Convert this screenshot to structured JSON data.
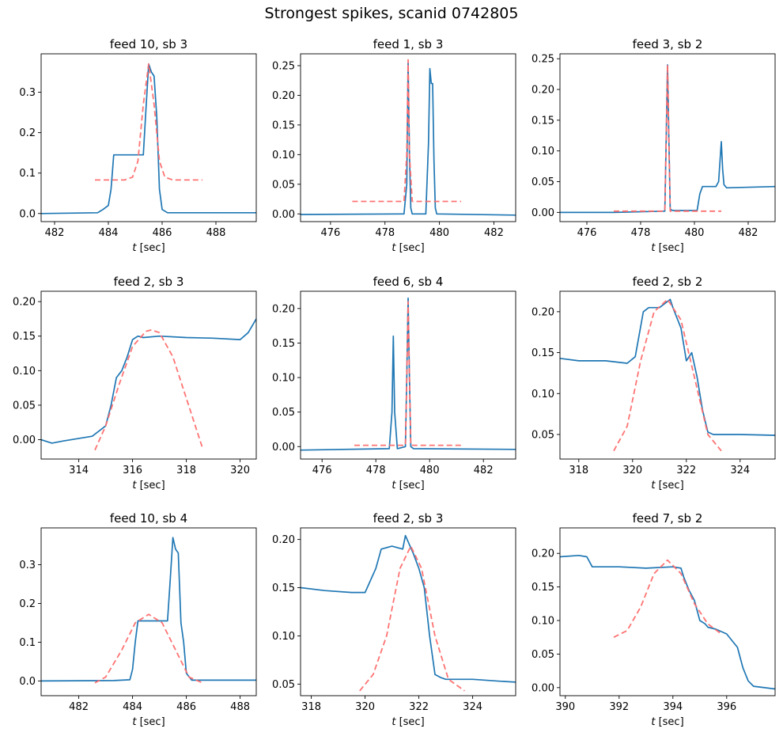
{
  "figure_title": "Strongest spikes, scanid 0742805",
  "colors": {
    "data_line": "#1f77b4",
    "fit_line": "#ff6b6b"
  },
  "chart_data": [
    {
      "type": "line",
      "title": "feed 10, sb 3",
      "xlabel": "t [sec]",
      "xlim": [
        481.5,
        489.5
      ],
      "ylim": [
        -0.02,
        0.395
      ],
      "xticks": [
        482,
        484,
        486,
        488
      ],
      "yticks": [
        0.0,
        0.1,
        0.2,
        0.3
      ],
      "ytick_labels": [
        "0.0",
        "0.1",
        "0.2",
        "0.3"
      ],
      "series": [
        {
          "style": "solid",
          "x": [
            481.5,
            483.6,
            483.8,
            484.0,
            484.1,
            484.2,
            485.3,
            485.4,
            485.5,
            485.6,
            485.7,
            485.8,
            485.9,
            486.0,
            486.2,
            489.5
          ],
          "y": [
            0.0,
            0.002,
            0.01,
            0.02,
            0.06,
            0.145,
            0.145,
            0.26,
            0.37,
            0.35,
            0.34,
            0.24,
            0.06,
            0.01,
            0.002,
            0.002
          ]
        },
        {
          "style": "dashed",
          "x": [
            483.5,
            484.6,
            484.9,
            485.1,
            485.3,
            485.5,
            485.7,
            485.9,
            486.1,
            486.4,
            487.5
          ],
          "y": [
            0.083,
            0.083,
            0.09,
            0.13,
            0.27,
            0.37,
            0.27,
            0.13,
            0.09,
            0.083,
            0.083
          ]
        }
      ]
    },
    {
      "type": "line",
      "title": "feed 1, sb 3",
      "xlabel": "t [sec]",
      "xlim": [
        474.9,
        482.8
      ],
      "ylim": [
        -0.013,
        0.27
      ],
      "xticks": [
        476,
        478,
        480,
        482
      ],
      "yticks": [
        0.0,
        0.05,
        0.1,
        0.15,
        0.2,
        0.25
      ],
      "ytick_labels": [
        "0.00",
        "0.05",
        "0.10",
        "0.15",
        "0.20",
        "0.25"
      ],
      "series": [
        {
          "style": "solid",
          "x": [
            474.9,
            478.7,
            478.8,
            478.85,
            478.9,
            478.95,
            479.0,
            479.5,
            479.6,
            479.65,
            479.7,
            479.75,
            479.8,
            479.85,
            479.9,
            482.8
          ],
          "y": [
            -0.001,
            0.0,
            0.05,
            0.255,
            0.1,
            0.01,
            0.0,
            0.0,
            0.12,
            0.245,
            0.22,
            0.22,
            0.09,
            0.01,
            0.0,
            -0.002
          ]
        },
        {
          "style": "dashed",
          "x": [
            476.8,
            478.7,
            478.8,
            478.85,
            478.9,
            479.0,
            480.8
          ],
          "y": [
            0.021,
            0.021,
            0.1,
            0.26,
            0.1,
            0.021,
            0.021
          ]
        }
      ]
    },
    {
      "type": "line",
      "title": "feed 3, sb 2",
      "xlabel": "t [sec]",
      "xlim": [
        475.0,
        483.0
      ],
      "ylim": [
        -0.015,
        0.258
      ],
      "xticks": [
        476,
        478,
        480,
        482
      ],
      "yticks": [
        0.0,
        0.05,
        0.1,
        0.15,
        0.2,
        0.25
      ],
      "ytick_labels": [
        "0.00",
        "0.05",
        "0.10",
        "0.15",
        "0.20",
        "0.25"
      ],
      "series": [
        {
          "style": "solid",
          "x": [
            475.0,
            477.0,
            478.9,
            478.95,
            479.0,
            479.05,
            479.1,
            479.2,
            480.1,
            480.2,
            480.3,
            480.8,
            480.9,
            481.0,
            481.05,
            481.1,
            481.2,
            483.0
          ],
          "y": [
            0.0,
            0.0,
            0.002,
            0.12,
            0.24,
            0.12,
            0.005,
            0.003,
            0.003,
            0.03,
            0.042,
            0.042,
            0.05,
            0.115,
            0.07,
            0.045,
            0.04,
            0.042
          ]
        },
        {
          "style": "dashed",
          "x": [
            477.0,
            478.9,
            478.95,
            479.0,
            479.05,
            479.1,
            481.0
          ],
          "y": [
            0.002,
            0.002,
            0.12,
            0.24,
            0.12,
            0.002,
            0.002
          ]
        }
      ]
    },
    {
      "type": "line",
      "title": "feed 2, sb 3",
      "xlabel": "t [sec]",
      "xlim": [
        312.6,
        320.6
      ],
      "ylim": [
        -0.028,
        0.215
      ],
      "xticks": [
        314,
        316,
        318,
        320
      ],
      "yticks": [
        0.0,
        0.05,
        0.1,
        0.15,
        0.2
      ],
      "ytick_labels": [
        "0.00",
        "0.05",
        "0.10",
        "0.15",
        "0.20"
      ],
      "series": [
        {
          "style": "solid",
          "x": [
            312.6,
            313.0,
            313.4,
            314.5,
            315.0,
            315.2,
            315.4,
            315.6,
            315.8,
            316.0,
            316.2,
            316.4,
            317.0,
            318.0,
            319.0,
            320.0,
            320.3,
            320.6
          ],
          "y": [
            0.0,
            -0.005,
            -0.002,
            0.005,
            0.02,
            0.05,
            0.09,
            0.1,
            0.12,
            0.145,
            0.15,
            0.148,
            0.15,
            0.148,
            0.147,
            0.145,
            0.155,
            0.175
          ]
        },
        {
          "style": "dashed",
          "x": [
            314.6,
            315.0,
            315.5,
            316.0,
            316.5,
            316.7,
            317.0,
            317.5,
            318.0,
            318.6
          ],
          "y": [
            -0.015,
            0.02,
            0.08,
            0.135,
            0.157,
            0.159,
            0.155,
            0.12,
            0.06,
            -0.012
          ]
        }
      ]
    },
    {
      "type": "line",
      "title": "feed 6, sb 4",
      "xlabel": "t [sec]",
      "xlim": [
        475.2,
        483.2
      ],
      "ylim": [
        -0.018,
        0.225
      ],
      "xticks": [
        476,
        478,
        480,
        482
      ],
      "yticks": [
        0.0,
        0.05,
        0.1,
        0.15,
        0.2
      ],
      "ytick_labels": [
        "0.00",
        "0.05",
        "0.10",
        "0.15",
        "0.20"
      ],
      "series": [
        {
          "style": "solid",
          "x": [
            475.2,
            478.5,
            478.6,
            478.65,
            478.7,
            478.8,
            479.1,
            479.15,
            479.2,
            479.25,
            479.3,
            479.4,
            483.2
          ],
          "y": [
            -0.005,
            -0.003,
            0.05,
            0.16,
            0.05,
            -0.003,
            0.0,
            0.1,
            0.215,
            0.1,
            0.0,
            -0.003,
            -0.004
          ]
        },
        {
          "style": "dashed",
          "x": [
            477.2,
            479.1,
            479.15,
            479.2,
            479.25,
            479.3,
            481.2
          ],
          "y": [
            0.002,
            0.002,
            0.1,
            0.21,
            0.1,
            0.002,
            0.002
          ]
        }
      ]
    },
    {
      "type": "line",
      "title": "feed 2, sb 2",
      "xlabel": "t [sec]",
      "xlim": [
        317.3,
        325.3
      ],
      "ylim": [
        0.02,
        0.225
      ],
      "xticks": [
        318,
        320,
        322,
        324
      ],
      "yticks": [
        0.05,
        0.1,
        0.15,
        0.2
      ],
      "ytick_labels": [
        "0.05",
        "0.10",
        "0.15",
        "0.20"
      ],
      "series": [
        {
          "style": "solid",
          "x": [
            317.3,
            318.0,
            319.0,
            319.8,
            320.1,
            320.4,
            320.6,
            321.0,
            321.4,
            321.5,
            321.8,
            322.0,
            322.2,
            322.4,
            322.6,
            322.8,
            323.0,
            324.0,
            325.3
          ],
          "y": [
            0.143,
            0.14,
            0.14,
            0.137,
            0.145,
            0.2,
            0.205,
            0.205,
            0.215,
            0.205,
            0.18,
            0.14,
            0.15,
            0.12,
            0.08,
            0.053,
            0.05,
            0.05,
            0.049
          ]
        },
        {
          "style": "dashed",
          "x": [
            319.3,
            319.8,
            320.3,
            320.8,
            321.3,
            321.8,
            322.3,
            322.8,
            323.3
          ],
          "y": [
            0.03,
            0.06,
            0.14,
            0.2,
            0.215,
            0.19,
            0.12,
            0.05,
            0.03
          ]
        }
      ]
    },
    {
      "type": "line",
      "title": "feed 10, sb 4",
      "xlabel": "t [sec]",
      "xlim": [
        480.6,
        488.6
      ],
      "ylim": [
        -0.038,
        0.395
      ],
      "xticks": [
        482,
        484,
        486,
        488
      ],
      "yticks": [
        0.0,
        0.1,
        0.2,
        0.3
      ],
      "ytick_labels": [
        "0.0",
        "0.1",
        "0.2",
        "0.3"
      ],
      "series": [
        {
          "style": "solid",
          "x": [
            480.6,
            483.3,
            483.9,
            484.0,
            484.1,
            484.2,
            485.3,
            485.4,
            485.5,
            485.6,
            485.7,
            485.8,
            485.9,
            486.0,
            486.2,
            488.6
          ],
          "y": [
            0.0,
            0.001,
            0.003,
            0.03,
            0.1,
            0.155,
            0.155,
            0.26,
            0.37,
            0.34,
            0.33,
            0.15,
            0.1,
            0.02,
            0.002,
            0.002
          ]
        },
        {
          "style": "dashed",
          "x": [
            482.6,
            483.0,
            483.6,
            484.1,
            484.6,
            485.1,
            485.6,
            486.1,
            486.6
          ],
          "y": [
            -0.005,
            0.01,
            0.08,
            0.15,
            0.172,
            0.15,
            0.08,
            0.01,
            -0.005
          ]
        }
      ]
    },
    {
      "type": "line",
      "title": "feed 2, sb 3",
      "xlabel": "t [sec]",
      "xlim": [
        317.6,
        325.6
      ],
      "ylim": [
        0.038,
        0.212
      ],
      "xticks": [
        318,
        320,
        322,
        324
      ],
      "yticks": [
        0.05,
        0.1,
        0.15,
        0.2
      ],
      "ytick_labels": [
        "0.05",
        "0.10",
        "0.15",
        "0.20"
      ],
      "series": [
        {
          "style": "solid",
          "x": [
            317.6,
            318.5,
            319.5,
            320.0,
            320.4,
            320.6,
            321.0,
            321.4,
            321.5,
            321.8,
            322.0,
            322.2,
            322.4,
            322.6,
            322.8,
            323.0,
            324.0,
            325.0,
            325.6
          ],
          "y": [
            0.15,
            0.147,
            0.145,
            0.145,
            0.17,
            0.19,
            0.193,
            0.19,
            0.204,
            0.185,
            0.17,
            0.15,
            0.1,
            0.06,
            0.057,
            0.055,
            0.055,
            0.053,
            0.052
          ]
        },
        {
          "style": "dashed",
          "x": [
            319.8,
            320.3,
            320.8,
            321.3,
            321.7,
            322.1,
            322.6,
            323.1,
            323.7
          ],
          "y": [
            0.043,
            0.06,
            0.1,
            0.17,
            0.193,
            0.17,
            0.1,
            0.055,
            0.043
          ]
        }
      ]
    },
    {
      "type": "line",
      "title": "feed 7, sb 2",
      "xlabel": "t [sec]",
      "xlim": [
        389.8,
        397.8
      ],
      "ylim": [
        -0.012,
        0.238
      ],
      "xticks": [
        390,
        392,
        394,
        396
      ],
      "yticks": [
        0.0,
        0.05,
        0.1,
        0.15,
        0.2
      ],
      "ytick_labels": [
        "0.00",
        "0.05",
        "0.10",
        "0.15",
        "0.20"
      ],
      "series": [
        {
          "style": "solid",
          "x": [
            389.8,
            390.5,
            390.8,
            391.0,
            392.0,
            393.0,
            394.0,
            394.3,
            394.4,
            394.6,
            394.8,
            395.0,
            395.2,
            395.3,
            395.6,
            396.0,
            396.2,
            396.4,
            396.6,
            396.8,
            397.0,
            397.8
          ],
          "y": [
            0.195,
            0.197,
            0.195,
            0.18,
            0.18,
            0.178,
            0.18,
            0.178,
            0.165,
            0.145,
            0.13,
            0.1,
            0.095,
            0.09,
            0.087,
            0.08,
            0.07,
            0.06,
            0.03,
            0.01,
            0.002,
            -0.002
          ]
        },
        {
          "style": "dashed",
          "x": [
            391.8,
            392.3,
            392.8,
            393.3,
            393.8,
            394.3,
            394.8,
            395.3,
            395.8
          ],
          "y": [
            0.075,
            0.085,
            0.12,
            0.17,
            0.19,
            0.17,
            0.125,
            0.095,
            0.08
          ]
        }
      ]
    }
  ]
}
